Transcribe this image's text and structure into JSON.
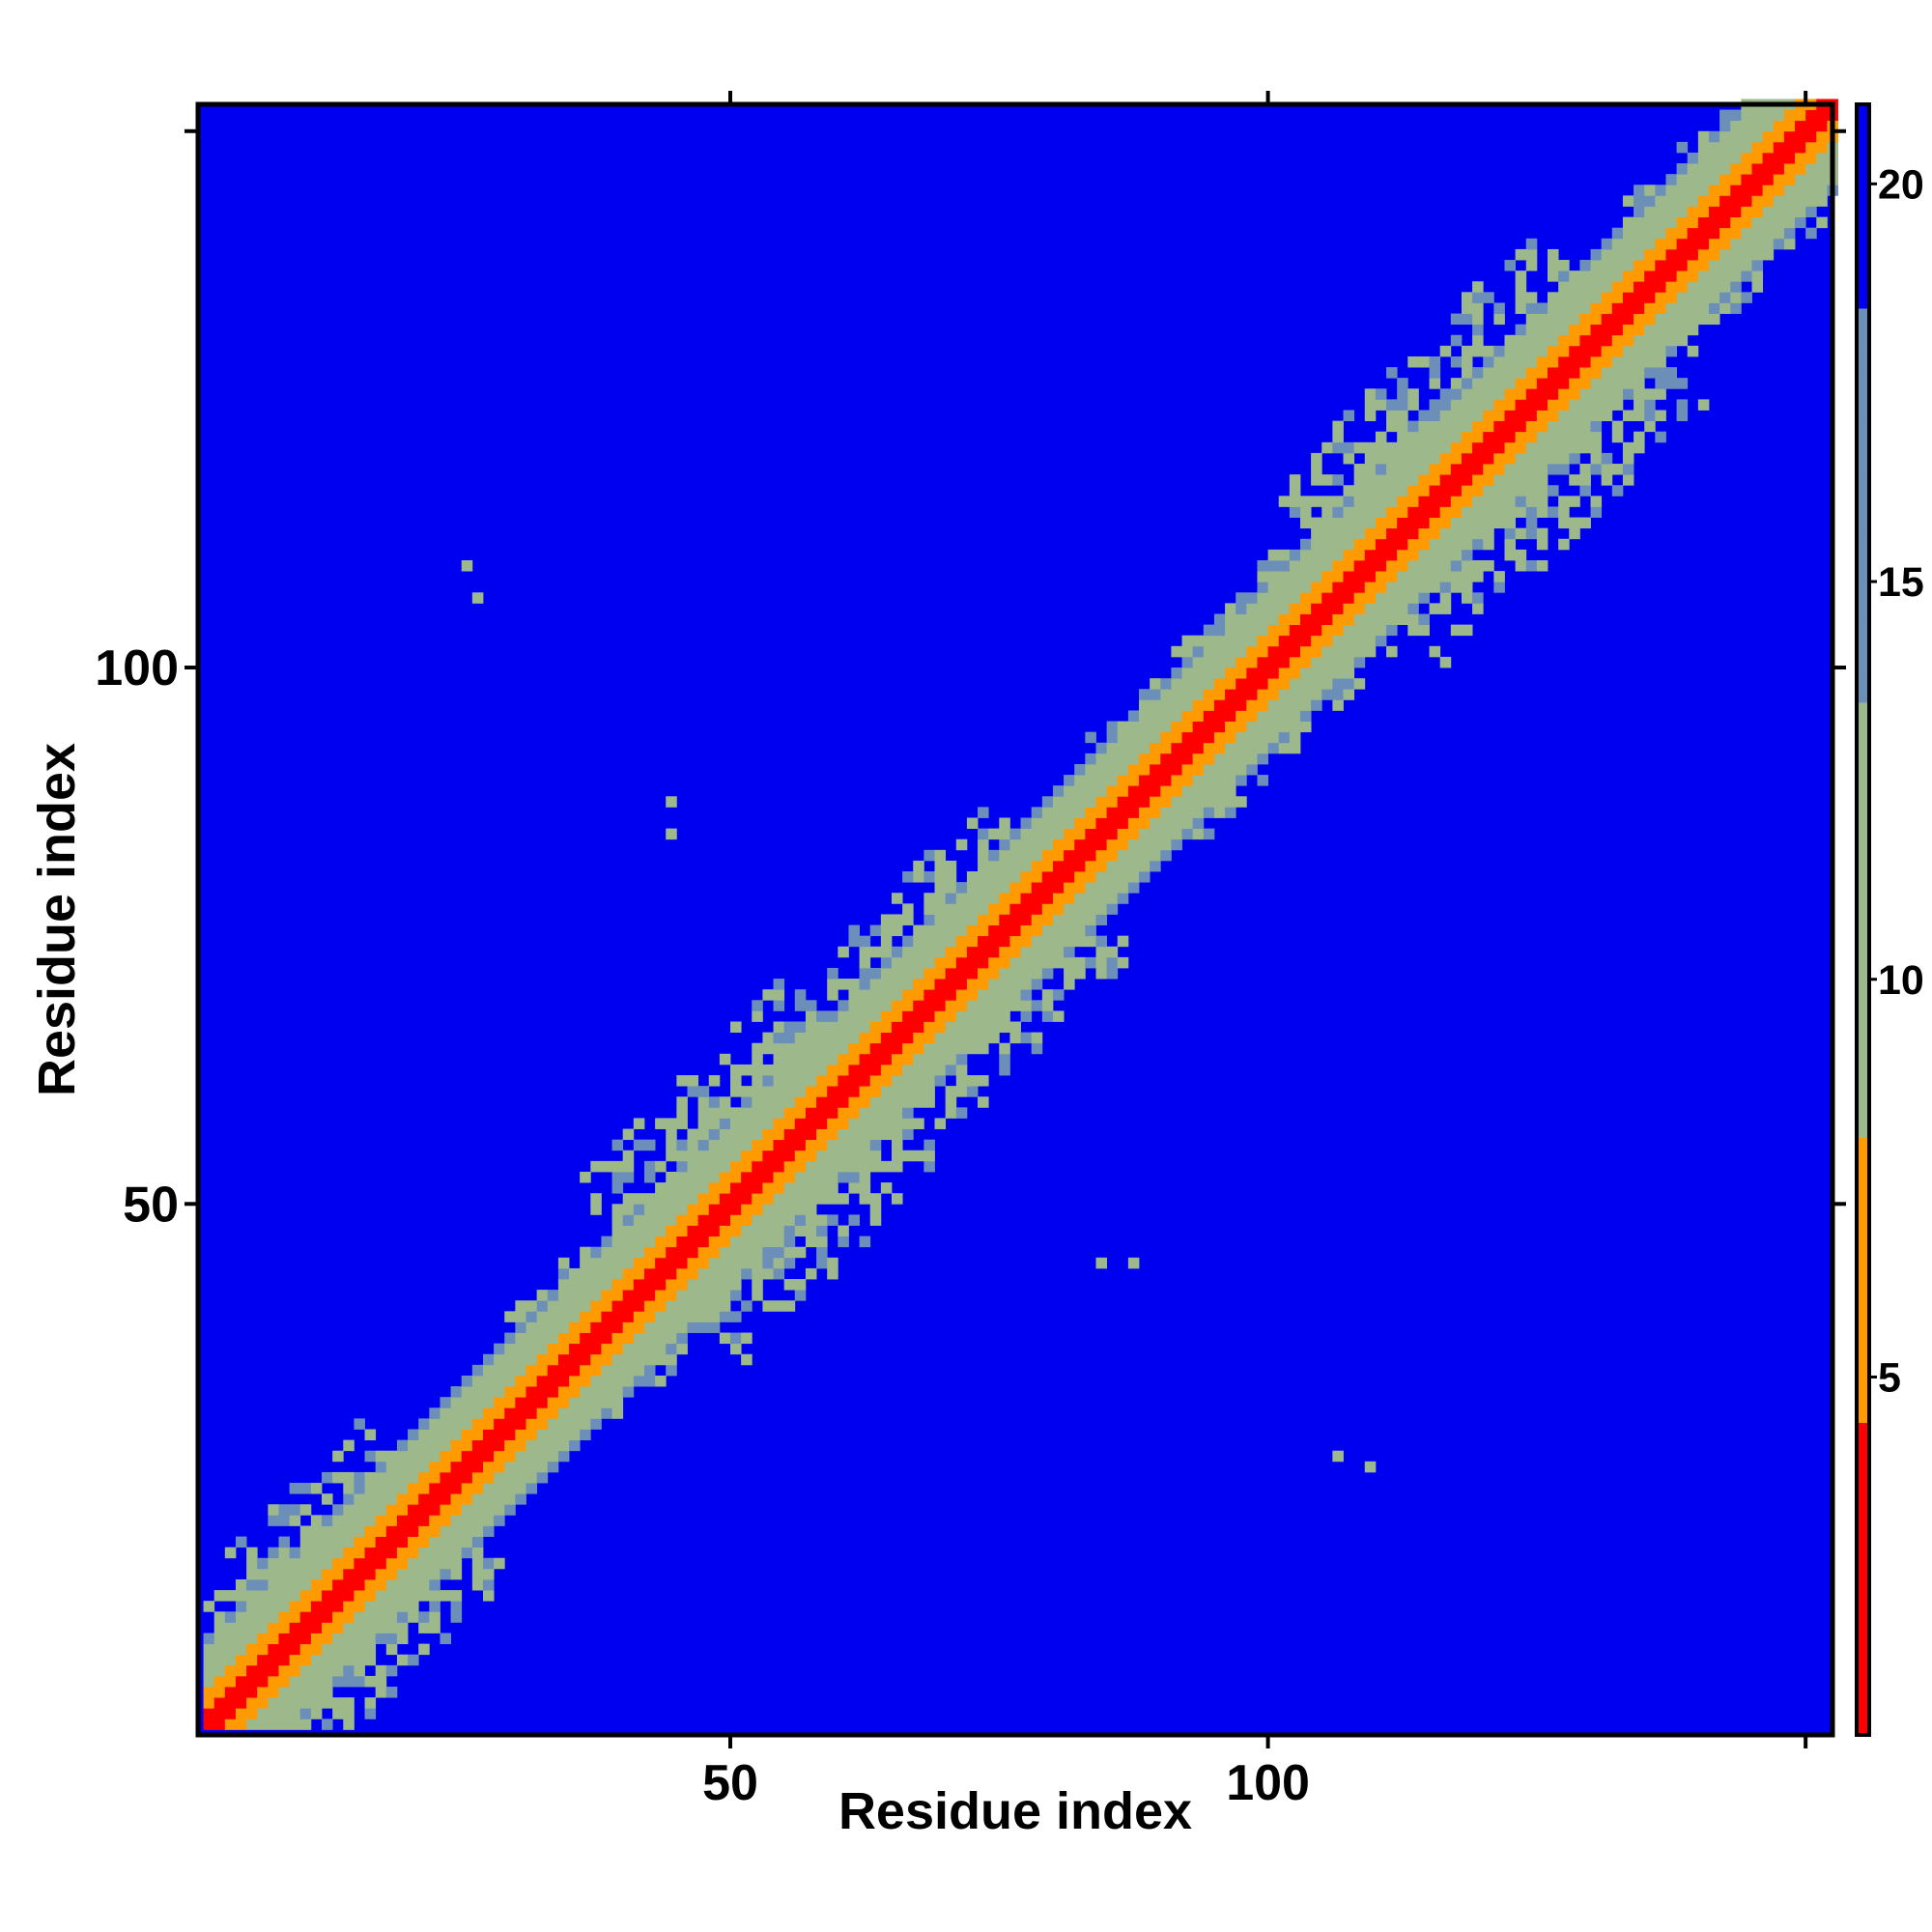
{
  "chart_data": {
    "type": "heatmap",
    "title": "",
    "xlabel": "Residue index",
    "ylabel": "Residue index",
    "n_residues": 152,
    "xlim": [
      1,
      152
    ],
    "ylim": [
      1,
      152
    ],
    "x_ticks": [
      50,
      100
    ],
    "y_ticks": [
      50,
      100
    ],
    "colorbar": {
      "ticks": [
        5,
        10,
        15,
        20
      ],
      "range": [
        0.5,
        21
      ]
    },
    "cell_rule": "value = min(distance_estimate, 21); diagonal band of small distances",
    "diagonal_profile": [
      {
        "offset": 0,
        "value": 1.0
      },
      {
        "offset": 1,
        "value": 3.8
      },
      {
        "offset": 2,
        "value": 5.5
      },
      {
        "offset": 3,
        "value": 6.5
      },
      {
        "offset": 4,
        "value": 8.5
      },
      {
        "offset": 5,
        "value": 10.0
      },
      {
        "offset": 6,
        "value": 11.5
      },
      {
        "offset": 7,
        "value": 13.0
      },
      {
        "offset": 8,
        "value": 16.0
      }
    ],
    "broad_regions": [
      {
        "start": 1,
        "end": 22,
        "width": 14,
        "value": 11.0
      },
      {
        "start": 34,
        "end": 48,
        "width": 10,
        "value": 10.5
      },
      {
        "start": 43,
        "end": 62,
        "width": 16,
        "value": 11.0
      },
      {
        "start": 55,
        "end": 80,
        "width": 14,
        "value": 11.0
      },
      {
        "start": 88,
        "end": 106,
        "width": 10,
        "value": 11.5
      },
      {
        "start": 108,
        "end": 132,
        "width": 16,
        "value": 11.0
      },
      {
        "start": 112,
        "end": 130,
        "width": 4,
        "value": 7.5
      },
      {
        "start": 134,
        "end": 152,
        "width": 10,
        "value": 11.0
      }
    ],
    "isolated_contacts": [
      {
        "i": 25,
        "j": 109,
        "value": 11.0
      },
      {
        "i": 26,
        "j": 106,
        "value": 11.0
      },
      {
        "i": 44,
        "j": 87,
        "value": 11.0
      },
      {
        "i": 44,
        "j": 84,
        "value": 11.0
      },
      {
        "i": 84,
        "j": 44,
        "value": 11.0
      },
      {
        "i": 87,
        "j": 44,
        "value": 11.0
      },
      {
        "i": 106,
        "j": 26,
        "value": 11.0
      },
      {
        "i": 109,
        "j": 25,
        "value": 11.0
      }
    ],
    "colors": {
      "far": "#0000f0",
      "red": "#ff0000",
      "orange": "#ff9a00",
      "sage": "#9db98c",
      "steel": "#6b8fb8"
    },
    "grid": false
  }
}
